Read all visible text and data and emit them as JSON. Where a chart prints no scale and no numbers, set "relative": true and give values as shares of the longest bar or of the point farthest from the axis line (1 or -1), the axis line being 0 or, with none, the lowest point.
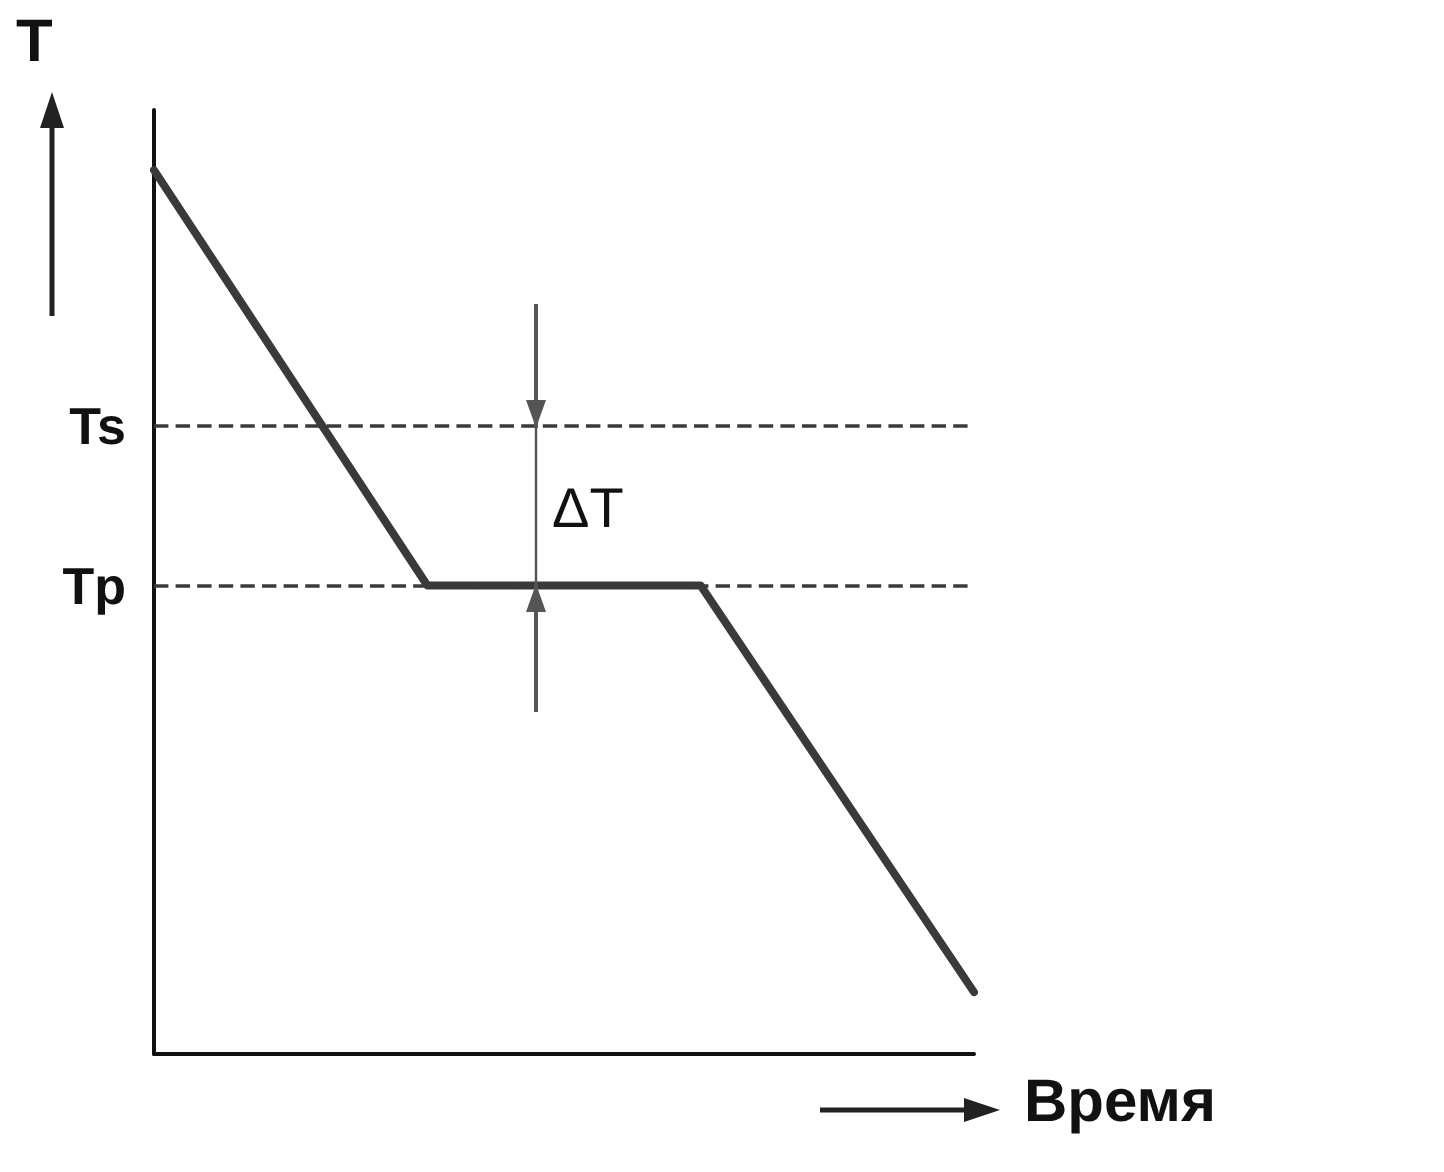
{
  "chart_data": {
    "type": "line",
    "relative": true,
    "xlabel": "Время",
    "ylabel": "T",
    "categories": [
      null,
      null,
      null,
      null
    ],
    "series": [
      {
        "color": "#3a3a3a",
        "values": [
          1,
          0.53,
          0.53,
          0.07
        ]
      }
    ],
    "ref_lines": [
      {
        "axis": "y",
        "value": 0.71,
        "label": "Ts",
        "color": "#3a3a3a",
        "line_style": "dashed"
      },
      {
        "axis": "y",
        "value": 0.53,
        "label": "Tp",
        "color": "#3a3a3a",
        "line_style": "dashed"
      }
    ],
    "annotations": [
      "ΔT"
    ],
    "marker": "none",
    "line_style": "solid",
    "grid": false
  }
}
